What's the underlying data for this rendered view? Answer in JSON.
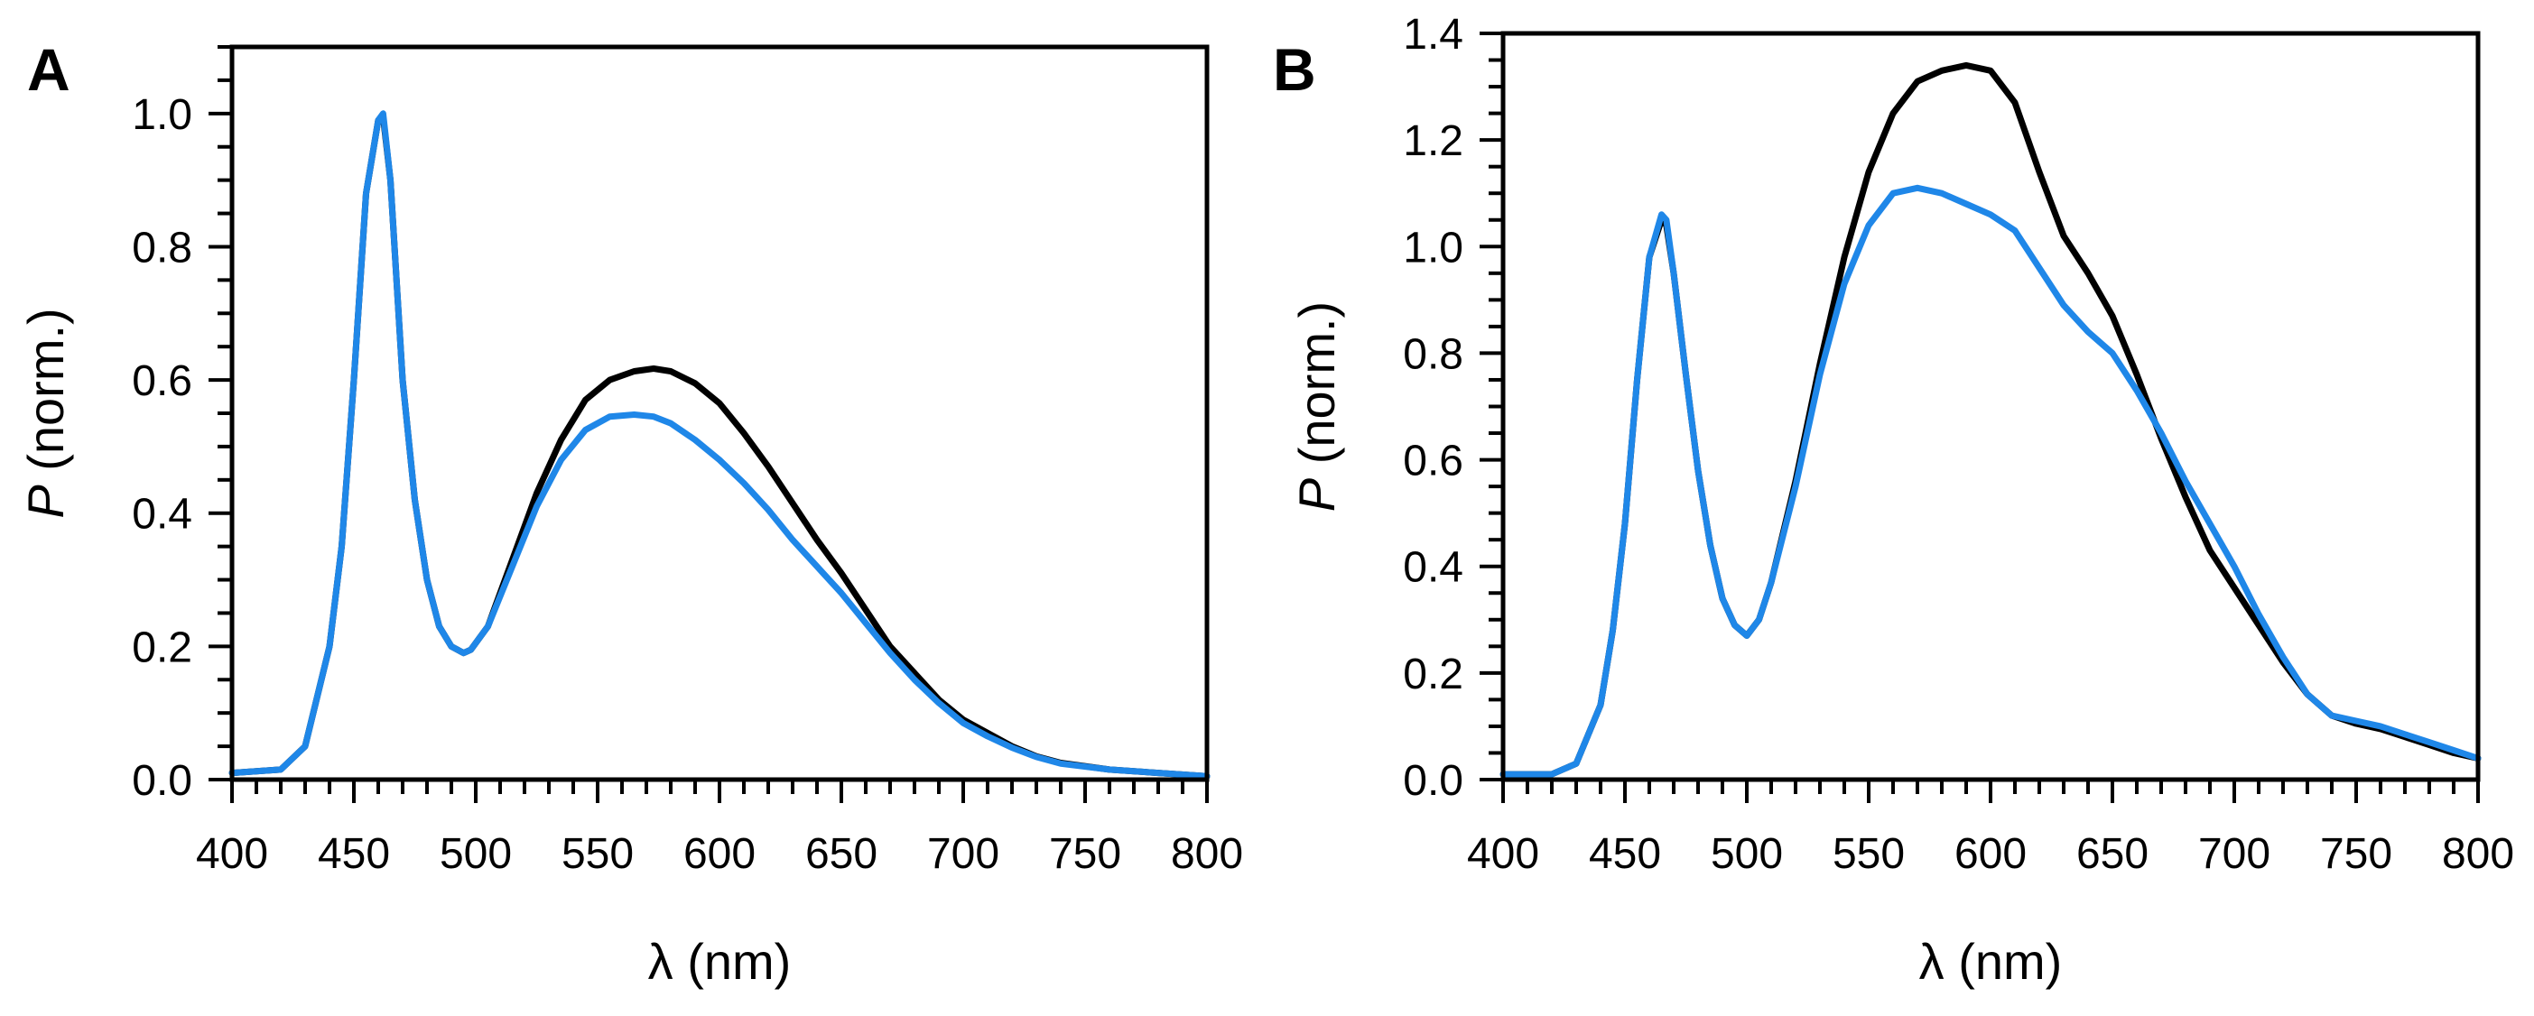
{
  "colors": {
    "series_black": "#000000",
    "series_blue": "#1f87e8",
    "axis": "#000000"
  },
  "chart_data": [
    {
      "type": "line",
      "panel_label": "A",
      "xlabel": "λ (nm)",
      "ylabel_italic": "P",
      "ylabel_rest": " (norm.)",
      "xlim": [
        400,
        800
      ],
      "ylim": [
        0,
        1.1
      ],
      "xticks": [
        400,
        450,
        500,
        550,
        600,
        650,
        700,
        750,
        800
      ],
      "yticks": [
        0.0,
        0.2,
        0.4,
        0.6,
        0.8,
        1.0
      ],
      "xtick_labels": [
        "400",
        "450",
        "500",
        "550",
        "600",
        "650",
        "700",
        "750",
        "800"
      ],
      "ytick_labels": [
        "0.0",
        "0.2",
        "0.4",
        "0.6",
        "0.8",
        "1.0"
      ],
      "x_minor_step": 10,
      "y_minor_step": 0.05,
      "grid": false,
      "series": [
        {
          "name": "black",
          "color": "#000000",
          "x": [
            400,
            420,
            430,
            440,
            445,
            450,
            455,
            460,
            462,
            465,
            470,
            475,
            480,
            485,
            490,
            495,
            498,
            505,
            515,
            525,
            535,
            545,
            555,
            565,
            573,
            580,
            590,
            600,
            610,
            620,
            630,
            640,
            650,
            660,
            670,
            680,
            690,
            700,
            710,
            720,
            730,
            740,
            760,
            780,
            800
          ],
          "values": [
            0.01,
            0.015,
            0.05,
            0.2,
            0.35,
            0.6,
            0.88,
            0.99,
            0.995,
            0.9,
            0.6,
            0.42,
            0.3,
            0.23,
            0.2,
            0.19,
            0.195,
            0.23,
            0.33,
            0.43,
            0.51,
            0.57,
            0.6,
            0.613,
            0.617,
            0.613,
            0.595,
            0.565,
            0.52,
            0.47,
            0.415,
            0.36,
            0.31,
            0.255,
            0.2,
            0.16,
            0.12,
            0.09,
            0.07,
            0.05,
            0.035,
            0.025,
            0.015,
            0.01,
            0.005
          ]
        },
        {
          "name": "blue",
          "color": "#1f87e8",
          "x": [
            400,
            420,
            430,
            440,
            445,
            450,
            455,
            460,
            462,
            465,
            470,
            475,
            480,
            485,
            490,
            495,
            498,
            505,
            515,
            525,
            535,
            545,
            555,
            565,
            573,
            580,
            590,
            600,
            610,
            620,
            630,
            640,
            650,
            660,
            670,
            680,
            690,
            700,
            710,
            720,
            730,
            740,
            760,
            780,
            800
          ],
          "values": [
            0.01,
            0.015,
            0.05,
            0.2,
            0.35,
            0.6,
            0.88,
            0.99,
            1.0,
            0.9,
            0.6,
            0.42,
            0.3,
            0.23,
            0.2,
            0.19,
            0.195,
            0.23,
            0.32,
            0.41,
            0.48,
            0.525,
            0.545,
            0.548,
            0.545,
            0.535,
            0.51,
            0.48,
            0.445,
            0.405,
            0.36,
            0.32,
            0.28,
            0.235,
            0.19,
            0.15,
            0.115,
            0.085,
            0.065,
            0.048,
            0.034,
            0.024,
            0.015,
            0.01,
            0.005
          ]
        }
      ]
    },
    {
      "type": "line",
      "panel_label": "B",
      "xlabel": "λ (nm)",
      "ylabel_italic": "P",
      "ylabel_rest": " (norm.)",
      "xlim": [
        400,
        800
      ],
      "ylim": [
        0,
        1.4
      ],
      "xticks": [
        400,
        450,
        500,
        550,
        600,
        650,
        700,
        750,
        800
      ],
      "yticks": [
        0.0,
        0.2,
        0.4,
        0.6,
        0.8,
        1.0,
        1.2,
        1.4
      ],
      "xtick_labels": [
        "400",
        "450",
        "500",
        "550",
        "600",
        "650",
        "700",
        "750",
        "800"
      ],
      "ytick_labels": [
        "0.0",
        "0.2",
        "0.4",
        "0.6",
        "0.8",
        "1.0",
        "1.2",
        "1.4"
      ],
      "x_minor_step": 10,
      "y_minor_step": 0.05,
      "grid": false,
      "series": [
        {
          "name": "black",
          "color": "#000000",
          "x": [
            400,
            420,
            430,
            440,
            445,
            450,
            455,
            460,
            465,
            467,
            470,
            475,
            480,
            485,
            490,
            495,
            500,
            505,
            510,
            520,
            530,
            540,
            550,
            560,
            570,
            580,
            590,
            600,
            610,
            620,
            630,
            640,
            650,
            660,
            670,
            680,
            690,
            700,
            710,
            720,
            730,
            740,
            750,
            760,
            770,
            780,
            790,
            800
          ],
          "values": [
            0.01,
            0.01,
            0.03,
            0.14,
            0.28,
            0.48,
            0.75,
            0.98,
            1.05,
            1.04,
            0.95,
            0.76,
            0.58,
            0.44,
            0.34,
            0.29,
            0.27,
            0.3,
            0.37,
            0.56,
            0.78,
            0.98,
            1.14,
            1.25,
            1.31,
            1.33,
            1.34,
            1.33,
            1.27,
            1.14,
            1.02,
            0.95,
            0.87,
            0.76,
            0.64,
            0.53,
            0.43,
            0.36,
            0.29,
            0.22,
            0.16,
            0.12,
            0.105,
            0.095,
            0.08,
            0.065,
            0.05,
            0.04
          ]
        },
        {
          "name": "blue",
          "color": "#1f87e8",
          "x": [
            400,
            420,
            430,
            440,
            445,
            450,
            455,
            460,
            465,
            467,
            470,
            475,
            480,
            485,
            490,
            495,
            500,
            505,
            510,
            520,
            530,
            540,
            550,
            560,
            570,
            580,
            590,
            600,
            610,
            620,
            630,
            640,
            650,
            660,
            670,
            680,
            690,
            700,
            710,
            720,
            730,
            740,
            750,
            760,
            770,
            780,
            790,
            800
          ],
          "values": [
            0.01,
            0.01,
            0.03,
            0.14,
            0.28,
            0.48,
            0.75,
            0.98,
            1.06,
            1.05,
            0.95,
            0.76,
            0.58,
            0.44,
            0.34,
            0.29,
            0.27,
            0.3,
            0.37,
            0.55,
            0.76,
            0.93,
            1.04,
            1.1,
            1.11,
            1.1,
            1.08,
            1.06,
            1.03,
            0.96,
            0.89,
            0.84,
            0.8,
            0.73,
            0.65,
            0.56,
            0.48,
            0.4,
            0.31,
            0.23,
            0.16,
            0.12,
            0.11,
            0.1,
            0.085,
            0.07,
            0.055,
            0.04
          ]
        }
      ]
    }
  ]
}
